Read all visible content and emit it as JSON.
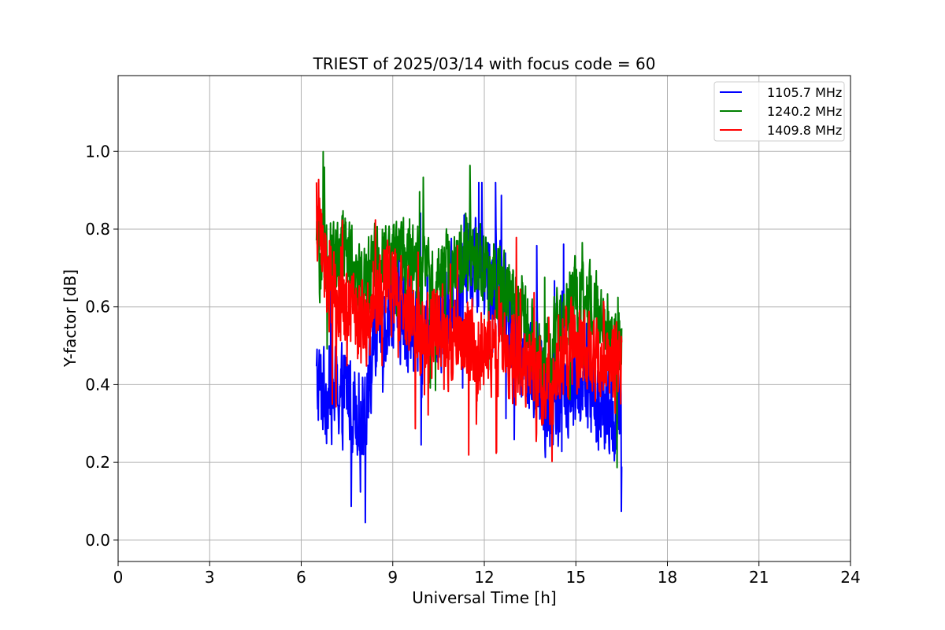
{
  "chart_data": {
    "type": "line",
    "title": "TRIEST of 2025/03/14 with focus code = 60",
    "xlabel": "Universal Time [h]",
    "ylabel": "Y-factor [dB]",
    "xlim": [
      0,
      24
    ],
    "ylim": [
      -0.055,
      1.195
    ],
    "xticks": [
      0,
      3,
      6,
      9,
      12,
      15,
      18,
      21,
      24
    ],
    "xtick_labels": [
      "0",
      "3",
      "6",
      "9",
      "12",
      "15",
      "18",
      "21",
      "24"
    ],
    "yticks": [
      0.0,
      0.2,
      0.4,
      0.6,
      0.8,
      1.0
    ],
    "ytick_labels": [
      "0.0",
      "0.2",
      "0.4",
      "0.6",
      "0.8",
      "1.0"
    ],
    "grid": true,
    "legend_position": "top-right",
    "x_range_of_data": [
      6.5,
      16.5
    ],
    "sampling_note_hours": 0.01,
    "series": [
      {
        "name": "1105.7 MHz",
        "color": "#0000ff",
        "anchors_x": [
          6.5,
          7.0,
          7.5,
          8.0,
          8.5,
          9.0,
          9.5,
          10.0,
          10.5,
          11.0,
          11.5,
          12.0,
          12.5,
          13.0,
          13.5,
          14.0,
          14.5,
          15.0,
          15.5,
          16.0,
          16.5
        ],
        "anchors_y": [
          0.4,
          0.38,
          0.38,
          0.33,
          0.52,
          0.62,
          0.55,
          0.5,
          0.55,
          0.62,
          0.72,
          0.7,
          0.66,
          0.55,
          0.45,
          0.35,
          0.38,
          0.4,
          0.38,
          0.32,
          0.3
        ],
        "noise_amplitude": 0.11,
        "min": 0.04,
        "max": 0.92
      },
      {
        "name": "1240.2 MHz",
        "color": "#008000",
        "anchors_x": [
          6.5,
          7.0,
          7.5,
          8.0,
          8.5,
          9.0,
          9.5,
          10.0,
          10.5,
          11.0,
          11.5,
          12.0,
          12.5,
          13.0,
          13.5,
          14.0,
          14.5,
          15.0,
          15.5,
          16.0,
          16.5
        ],
        "anchors_y": [
          0.72,
          0.74,
          0.72,
          0.68,
          0.7,
          0.74,
          0.74,
          0.66,
          0.68,
          0.72,
          0.74,
          0.7,
          0.66,
          0.62,
          0.55,
          0.45,
          0.58,
          0.62,
          0.6,
          0.55,
          0.48
        ],
        "noise_amplitude": 0.09,
        "min": 0.0,
        "max": 1.03
      },
      {
        "name": "1409.8 MHz",
        "color": "#ff0000",
        "anchors_x": [
          6.5,
          7.0,
          7.5,
          8.0,
          8.5,
          9.0,
          9.5,
          10.0,
          10.5,
          11.0,
          11.5,
          12.0,
          12.5,
          13.0,
          13.5,
          14.0,
          14.5,
          15.0,
          15.5,
          16.0,
          16.5
        ],
        "anchors_y": [
          0.85,
          0.62,
          0.6,
          0.55,
          0.64,
          0.66,
          0.6,
          0.52,
          0.55,
          0.5,
          0.52,
          0.48,
          0.5,
          0.46,
          0.48,
          0.38,
          0.48,
          0.5,
          0.48,
          0.46,
          0.42
        ],
        "noise_amplitude": 0.1,
        "min": 0.0,
        "max": 1.14
      }
    ]
  }
}
